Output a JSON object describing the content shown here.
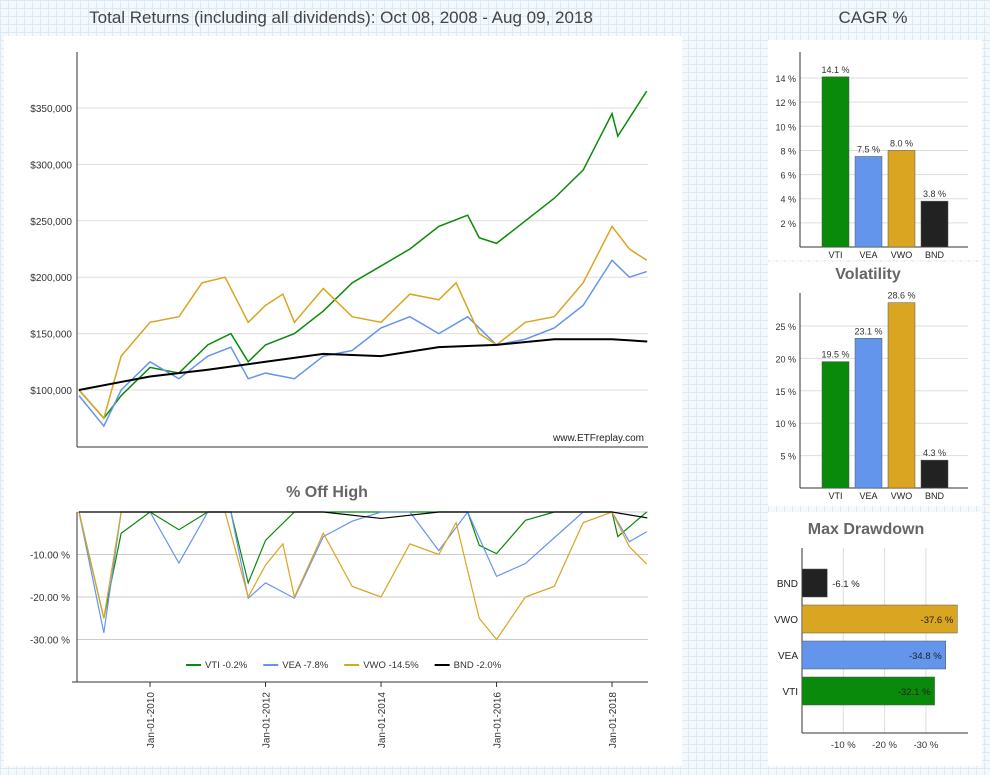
{
  "header": {
    "main_title": "Total Returns (including all dividends): Oct 08, 2008 - Aug 09, 2018",
    "side_title": "CAGR %"
  },
  "chart_data": [
    {
      "type": "line",
      "title": "",
      "watermark": "www.ETFreplay.com",
      "yticks": [
        "$100,000",
        "$150,000",
        "$200,000",
        "$250,000",
        "$300,000",
        "$350,000"
      ],
      "ylim": [
        50000,
        400000
      ],
      "xlim": [
        2008.77,
        2018.61
      ],
      "grid": true,
      "series": [
        {
          "name": "VTI",
          "color": "#0a8a0a",
          "x": [
            2008.77,
            2009.2,
            2009.5,
            2010,
            2010.5,
            2011,
            2011.4,
            2011.7,
            2012,
            2012.5,
            2013,
            2013.5,
            2014,
            2014.5,
            2015,
            2015.5,
            2015.7,
            2016,
            2016.5,
            2017,
            2017.5,
            2018,
            2018.1,
            2018.6
          ],
          "y": [
            100000,
            75000,
            95000,
            120000,
            115000,
            140000,
            150000,
            125000,
            140000,
            150000,
            170000,
            195000,
            210000,
            225000,
            245000,
            255000,
            235000,
            230000,
            250000,
            270000,
            295000,
            345000,
            325000,
            365000
          ]
        },
        {
          "name": "VEA",
          "color": "#6495ed",
          "x": [
            2008.77,
            2009.2,
            2009.5,
            2010,
            2010.5,
            2011,
            2011.4,
            2011.7,
            2012,
            2012.5,
            2013,
            2013.5,
            2014,
            2014.5,
            2015,
            2015.5,
            2016,
            2016.5,
            2017,
            2017.5,
            2018,
            2018.3,
            2018.6
          ],
          "y": [
            95000,
            68000,
            100000,
            125000,
            110000,
            130000,
            138000,
            110000,
            115000,
            110000,
            130000,
            135000,
            155000,
            165000,
            150000,
            165000,
            140000,
            145000,
            155000,
            175000,
            215000,
            200000,
            205000
          ]
        },
        {
          "name": "VWO",
          "color": "#daa520",
          "x": [
            2008.77,
            2009.2,
            2009.5,
            2010,
            2010.5,
            2010.9,
            2011.3,
            2011.7,
            2012,
            2012.3,
            2012.5,
            2013,
            2013.5,
            2014,
            2014.5,
            2015,
            2015.3,
            2015.7,
            2016,
            2016.5,
            2017,
            2017.5,
            2018,
            2018.3,
            2018.6
          ],
          "y": [
            100000,
            75000,
            130000,
            160000,
            165000,
            195000,
            200000,
            160000,
            175000,
            185000,
            160000,
            190000,
            165000,
            160000,
            185000,
            180000,
            195000,
            150000,
            140000,
            160000,
            165000,
            195000,
            245000,
            225000,
            215000
          ]
        },
        {
          "name": "BND",
          "color": "#000000",
          "x": [
            2008.77,
            2010,
            2011,
            2012,
            2013,
            2014,
            2015,
            2016,
            2017,
            2018,
            2018.61
          ],
          "y": [
            100000,
            112000,
            118000,
            125000,
            132000,
            130000,
            138000,
            140000,
            145000,
            145000,
            143000
          ]
        }
      ]
    },
    {
      "type": "line",
      "title": "% Off High",
      "yticks": [
        "-10.00 %",
        "-20.00 %",
        "-30.00 %"
      ],
      "ylim": [
        -40,
        0
      ],
      "xticks": [
        "Jan-01-2010",
        "Jan-01-2012",
        "Jan-01-2014",
        "Jan-01-2016",
        "Jan-01-2018"
      ],
      "xtick_values": [
        2010,
        2012,
        2014,
        2016,
        2018
      ],
      "legend": [
        "VTI -0.2%",
        "VEA -7.8%",
        "VWO -14.5%",
        "BND -2.0%"
      ],
      "legend_position": "bottom"
    },
    {
      "type": "bar",
      "title": "CAGR %",
      "categories": [
        "VTI",
        "VEA",
        "VWO",
        "BND"
      ],
      "values": [
        14.1,
        7.5,
        8.0,
        3.8
      ],
      "labels": [
        "14.1 %",
        "7.5 %",
        "8.0 %",
        "3.8 %"
      ],
      "yticks": [
        "2 %",
        "4 %",
        "6 %",
        "8 %",
        "10 %",
        "12 %",
        "14 %"
      ],
      "ylim": [
        0,
        16
      ]
    },
    {
      "type": "bar",
      "title": "Volatility",
      "categories": [
        "VTI",
        "VEA",
        "VWO",
        "BND"
      ],
      "values": [
        19.5,
        23.1,
        28.6,
        4.3
      ],
      "labels": [
        "19.5 %",
        "23.1 %",
        "28.6 %",
        "4.3 %"
      ],
      "yticks": [
        "5 %",
        "10 %",
        "15 %",
        "20 %",
        "25 %"
      ],
      "ylim": [
        0,
        30
      ]
    },
    {
      "type": "bar",
      "orientation": "horizontal",
      "title": "Max Drawdown",
      "categories": [
        "BND",
        "VWO",
        "VEA",
        "VTI"
      ],
      "values": [
        -6.1,
        -37.6,
        -34.8,
        -32.1
      ],
      "labels": [
        "-6.1 %",
        "-37.6 %",
        "-34.8 %",
        "-32.1 %"
      ],
      "xticks": [
        "-10 %",
        "-20 %",
        "-30 %"
      ],
      "xlim": [
        0,
        -40
      ]
    }
  ],
  "colors": {
    "VTI": "#0a8a0a",
    "VEA": "#6495ed",
    "VWO": "#daa520",
    "BND": "#222222"
  }
}
